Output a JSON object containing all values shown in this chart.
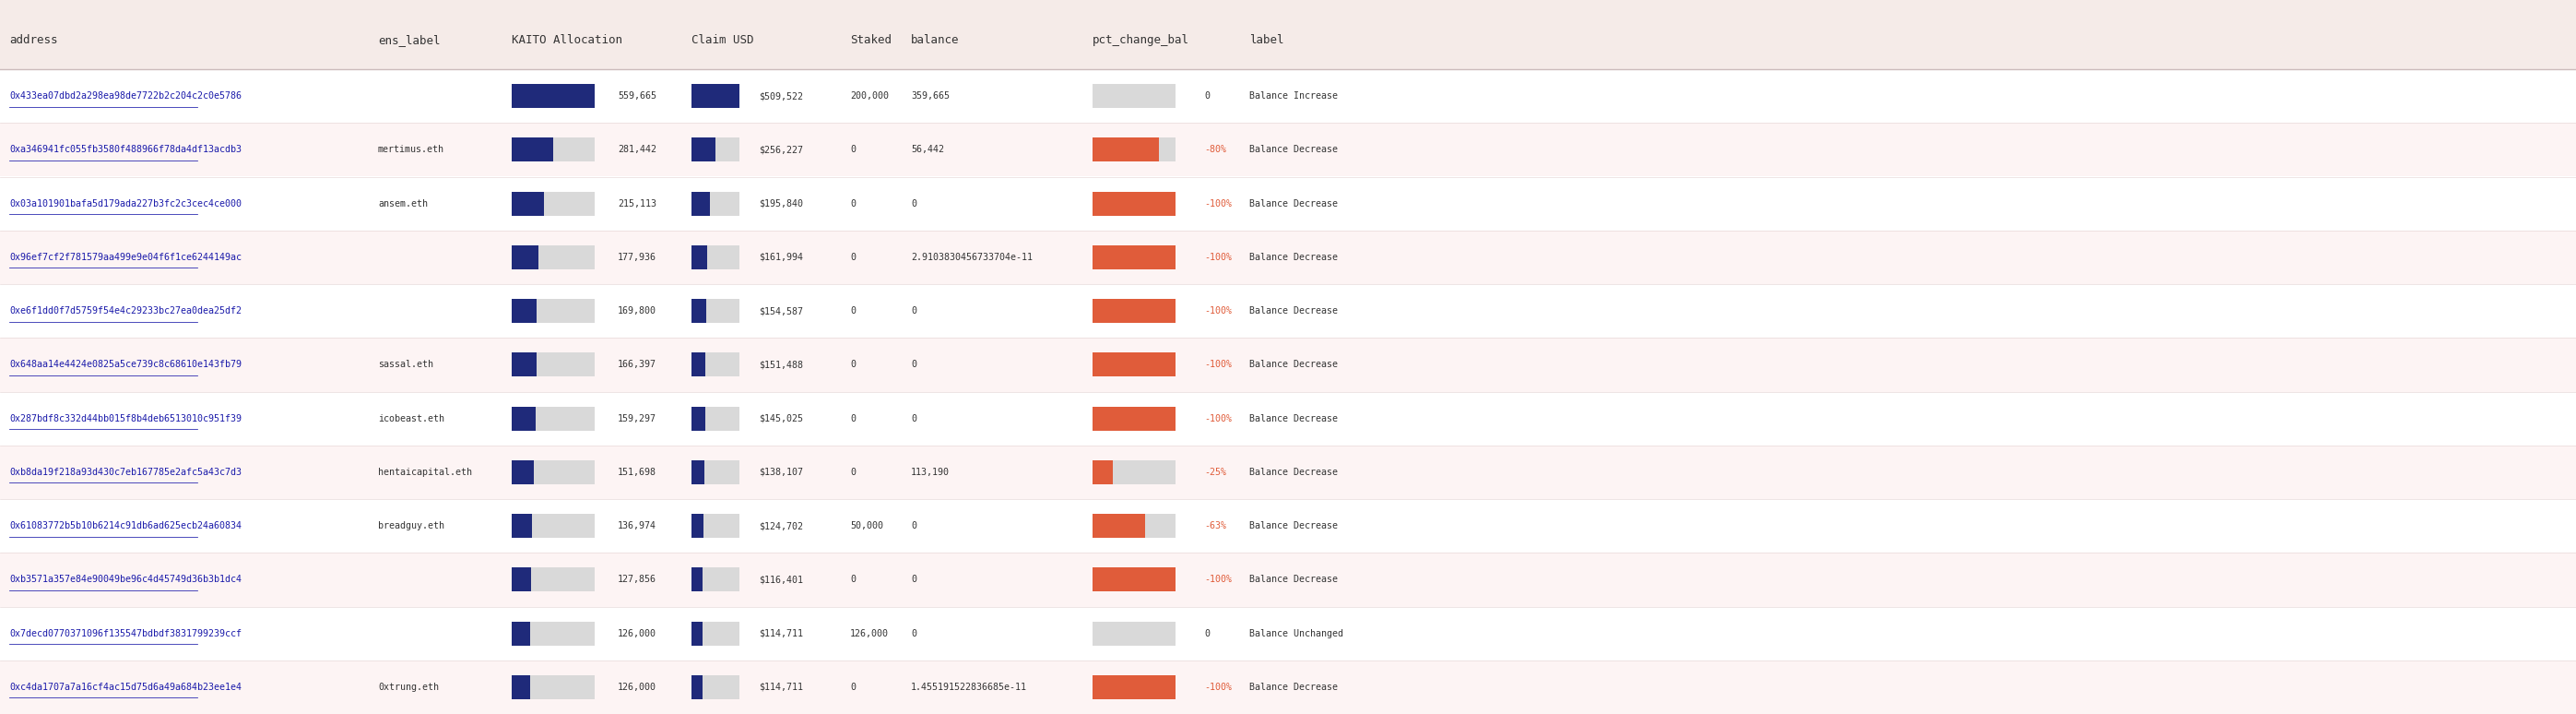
{
  "columns": [
    "address",
    "ens_label",
    "KAITO Allocation",
    "Claim USD",
    "Staked",
    "balance",
    "pct_change_bal",
    "label"
  ],
  "rows": [
    {
      "address": "0x433ea07dbd2a298ea98de7722b2c204c2c0e5786",
      "ens_label": "",
      "kaito_alloc": 559665,
      "claim_usd": "$509,522",
      "staked": "200,000",
      "balance": "359,665",
      "pct_change": 0,
      "pct_change_str": "0",
      "label": "Balance Increase",
      "pct_bar_color": "#d0cece",
      "row_bg": "#ffffff"
    },
    {
      "address": "0xa346941fc055fb3580f488966f78da4df13acdb3",
      "ens_label": "mertimus.eth",
      "kaito_alloc": 281442,
      "claim_usd": "$256,227",
      "staked": "0",
      "balance": "56,442",
      "pct_change": -80,
      "pct_change_str": "-80%",
      "label": "Balance Decrease",
      "pct_bar_color": "#e05c3a",
      "row_bg": "#fdf4f4"
    },
    {
      "address": "0x03a101901bafa5d179ada227b3fc2c3cec4ce000",
      "ens_label": "ansem.eth",
      "kaito_alloc": 215113,
      "claim_usd": "$195,840",
      "staked": "0",
      "balance": "0",
      "pct_change": -100,
      "pct_change_str": "-100%",
      "label": "Balance Decrease",
      "pct_bar_color": "#e05c3a",
      "row_bg": "#ffffff"
    },
    {
      "address": "0x96ef7cf2f781579aa499e9e04f6f1ce6244149ac",
      "ens_label": "",
      "kaito_alloc": 177936,
      "claim_usd": "$161,994",
      "staked": "0",
      "balance": "2.9103830456733704e-11",
      "pct_change": -100,
      "pct_change_str": "-100%",
      "label": "Balance Decrease",
      "pct_bar_color": "#e05c3a",
      "row_bg": "#fdf4f4"
    },
    {
      "address": "0xe6f1dd0f7d5759f54e4c29233bc27ea0dea25df2",
      "ens_label": "",
      "kaito_alloc": 169800,
      "claim_usd": "$154,587",
      "staked": "0",
      "balance": "0",
      "pct_change": -100,
      "pct_change_str": "-100%",
      "label": "Balance Decrease",
      "pct_bar_color": "#e05c3a",
      "row_bg": "#ffffff"
    },
    {
      "address": "0x648aa14e4424e0825a5ce739c8c68610e143fb79",
      "ens_label": "sassal.eth",
      "kaito_alloc": 166397,
      "claim_usd": "$151,488",
      "staked": "0",
      "balance": "0",
      "pct_change": -100,
      "pct_change_str": "-100%",
      "label": "Balance Decrease",
      "pct_bar_color": "#e05c3a",
      "row_bg": "#fdf4f4"
    },
    {
      "address": "0x287bdf8c332d44bb015f8b4deb6513010c951f39",
      "ens_label": "icobeast.eth",
      "kaito_alloc": 159297,
      "claim_usd": "$145,025",
      "staked": "0",
      "balance": "0",
      "pct_change": -100,
      "pct_change_str": "-100%",
      "label": "Balance Decrease",
      "pct_bar_color": "#e05c3a",
      "row_bg": "#ffffff"
    },
    {
      "address": "0xb8da19f218a93d430c7eb167785e2afc5a43c7d3",
      "ens_label": "hentaicapital.eth",
      "kaito_alloc": 151698,
      "claim_usd": "$138,107",
      "staked": "0",
      "balance": "113,190",
      "pct_change": -25,
      "pct_change_str": "-25%",
      "label": "Balance Decrease",
      "pct_bar_color": "#e05c3a",
      "row_bg": "#fdf4f4"
    },
    {
      "address": "0x61083772b5b10b6214c91db6ad625ecb24a60834",
      "ens_label": "breadguy.eth",
      "kaito_alloc": 136974,
      "claim_usd": "$124,702",
      "staked": "50,000",
      "balance": "0",
      "pct_change": -63,
      "pct_change_str": "-63%",
      "label": "Balance Decrease",
      "pct_bar_color": "#e05c3a",
      "row_bg": "#ffffff"
    },
    {
      "address": "0xb3571a357e84e90049be96c4d45749d36b3b1dc4",
      "ens_label": "",
      "kaito_alloc": 127856,
      "claim_usd": "$116,401",
      "staked": "0",
      "balance": "0",
      "pct_change": -100,
      "pct_change_str": "-100%",
      "label": "Balance Decrease",
      "pct_bar_color": "#e05c3a",
      "row_bg": "#fdf4f4"
    },
    {
      "address": "0x7decd0770371096f135547bdbdf3831799239ccf",
      "ens_label": "",
      "kaito_alloc": 126000,
      "claim_usd": "$114,711",
      "staked": "126,000",
      "balance": "0",
      "pct_change": 0,
      "pct_change_str": "0",
      "label": "Balance Unchanged",
      "pct_bar_color": "#d0cece",
      "row_bg": "#ffffff"
    },
    {
      "address": "0xc4da1707a7a16cf4ac15d75d6a49a684b23ee1e4",
      "ens_label": "0xtrung.eth",
      "kaito_alloc": 126000,
      "claim_usd": "$114,711",
      "staked": "0",
      "balance": "1.455191522836685e-11",
      "pct_change": -100,
      "pct_change_str": "-100%",
      "label": "Balance Decrease",
      "pct_bar_color": "#e05c3a",
      "row_bg": "#fdf4f4"
    }
  ],
  "max_kaito": 559665,
  "header_bg": "#f5ebe8",
  "col_header_color": "#333333",
  "address_color": "#1a1aaa",
  "bar_dark_blue": "#1f2a7a",
  "bar_light_gray": "#d9d9d9",
  "bar_red": "#e05c3a",
  "bar_light_neutral": "#d0cece",
  "text_color": "#333333",
  "separator_color": "#e8dada",
  "header_sep_color": "#ccbbbb"
}
